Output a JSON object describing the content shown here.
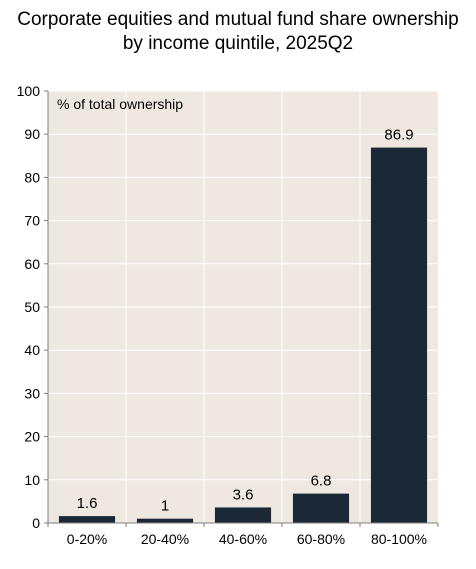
{
  "chart_data": {
    "type": "bar",
    "title_line1": "Corporate equities and mutual fund share ownership",
    "title_line2": "by income quintile, 2025Q2",
    "annotation": "% of total ownership",
    "categories": [
      "0-20%",
      "20-40%",
      "40-60%",
      "60-80%",
      "80-100%"
    ],
    "values": [
      1.6,
      1,
      3.6,
      6.8,
      86.9
    ],
    "value_labels": [
      "1.6",
      "1",
      "3.6",
      "6.8",
      "86.9"
    ],
    "ylim": [
      0,
      100
    ],
    "yticks": [
      0,
      10,
      20,
      30,
      40,
      50,
      60,
      70,
      80,
      90,
      100
    ],
    "grid": true,
    "colors": {
      "bar": "#1b2936",
      "plot_bg": "#efe8e0",
      "grid": "#ffffff",
      "axis": "#7f7f7f",
      "text": "#000000"
    }
  }
}
